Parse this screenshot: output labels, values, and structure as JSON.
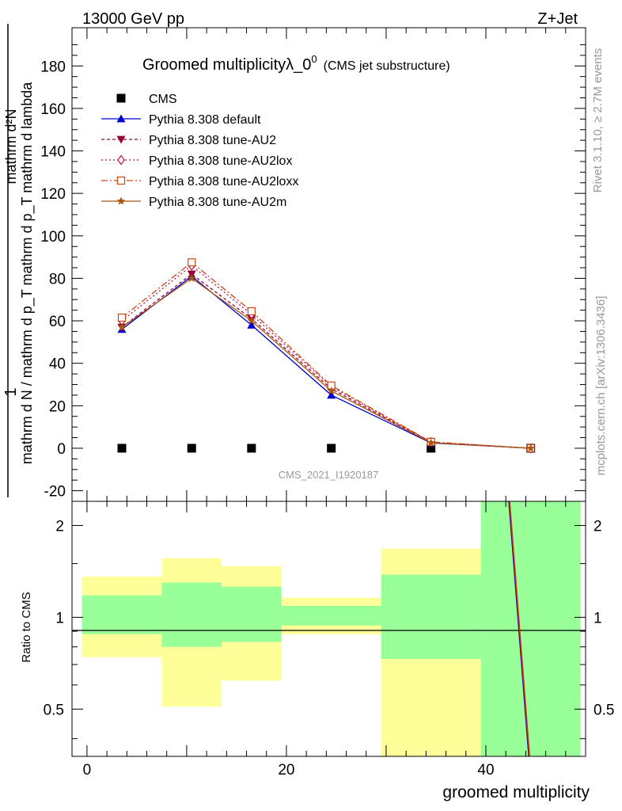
{
  "header": {
    "energy_label": "13000 GeV pp",
    "process_label": "Z+Jet"
  },
  "side_labels": {
    "rivet": "Rivet 3.1.10, ≥ 2.7M events",
    "mcplots": "mcplots.cern.ch [arXiv:1306.3436]"
  },
  "chart_data": [
    {
      "type": "line",
      "title_main": "Groomed multiplicityλ_0",
      "title_sup": "0",
      "title_sub": "(CMS jet substructure)",
      "ylabel_num": "1",
      "ylabel_den": "mathrm d N / mathrm d p_T mathrm d p_T mathrm d lambda",
      "ylabel_rhs": "mathrm d²N",
      "watermark": "CMS_2021_I1920187",
      "xlim": [
        -1.5,
        50
      ],
      "ylim": [
        -25,
        198
      ],
      "y_ticks": [
        -20,
        0,
        20,
        40,
        60,
        80,
        100,
        120,
        140,
        160,
        180
      ],
      "grid": false,
      "legend_position": "top-left",
      "x": [
        3.5,
        10.5,
        16.5,
        24.5,
        34.5,
        44.5
      ],
      "series": [
        {
          "name": "CMS",
          "marker": "square",
          "color": "#000000",
          "values": [
            0,
            0,
            0,
            0,
            0,
            0
          ]
        },
        {
          "name": "Pythia 8.308 default",
          "marker": "triangle-up",
          "color": "#0000cc",
          "dash": "",
          "values": [
            56,
            81,
            58,
            25,
            2.5,
            0
          ]
        },
        {
          "name": "Pythia 8.308 tune-AU2",
          "marker": "triangle-down",
          "color": "#990033",
          "dash": "4,3",
          "values": [
            57,
            82,
            61,
            28,
            2.7,
            0
          ]
        },
        {
          "name": "Pythia 8.308 tune-AU2lox",
          "marker": "diamond-open",
          "color": "#bb1144",
          "dash": "2,3",
          "values": [
            60,
            86,
            63,
            29,
            2.9,
            0
          ]
        },
        {
          "name": "Pythia 8.308 tune-AU2loxx",
          "marker": "square-open",
          "color": "#cc4411",
          "dash": "8,3,2,3",
          "values": [
            61.5,
            87.5,
            64.5,
            29.5,
            3,
            0
          ]
        },
        {
          "name": "Pythia 8.308 tune-AU2m",
          "marker": "star",
          "color": "#aa5511",
          "dash": "",
          "values": [
            57,
            80,
            60,
            27,
            2.6,
            0
          ]
        }
      ]
    },
    {
      "type": "ratio",
      "ylabel": "Ratio to CMS",
      "xlabel": "groomed multiplicity",
      "xlim": [
        -1.5,
        50
      ],
      "ylim": [
        0.35,
        2.4
      ],
      "y_ticks": [
        0.5,
        1,
        2
      ],
      "x_ticks": [
        0,
        20,
        40
      ],
      "reference": 1,
      "bins": [
        {
          "lo": -0.5,
          "hi": 7.5,
          "stat_lo": 0.88,
          "stat_hi": 1.18,
          "tot_lo": 0.74,
          "tot_hi": 1.36
        },
        {
          "lo": 7.5,
          "hi": 13.5,
          "stat_lo": 0.8,
          "stat_hi": 1.3,
          "tot_lo": 0.51,
          "tot_hi": 1.56
        },
        {
          "lo": 13.5,
          "hi": 19.5,
          "stat_lo": 0.83,
          "stat_hi": 1.26,
          "tot_lo": 0.62,
          "tot_hi": 1.47
        },
        {
          "lo": 19.5,
          "hi": 29.5,
          "stat_lo": 0.94,
          "stat_hi": 1.09,
          "tot_lo": 0.88,
          "tot_hi": 1.16
        },
        {
          "lo": 29.5,
          "hi": 39.5,
          "stat_lo": 0.73,
          "stat_hi": 1.38,
          "tot_lo": 0.33,
          "tot_hi": 1.68
        },
        {
          "lo": 39.5,
          "hi": 49.5,
          "stat_lo": 0.33,
          "stat_hi": 2.6,
          "tot_lo": 0.33,
          "tot_hi": 2.6
        }
      ],
      "ratio_line": {
        "x": [
          42.3,
          44.3
        ],
        "y": [
          2.6,
          0.33
        ],
        "colors": [
          "#0000cc",
          "#990033",
          "#cc4411"
        ]
      }
    }
  ],
  "colors": {
    "band_total": "#ffff99",
    "band_stat": "#99ff99"
  }
}
